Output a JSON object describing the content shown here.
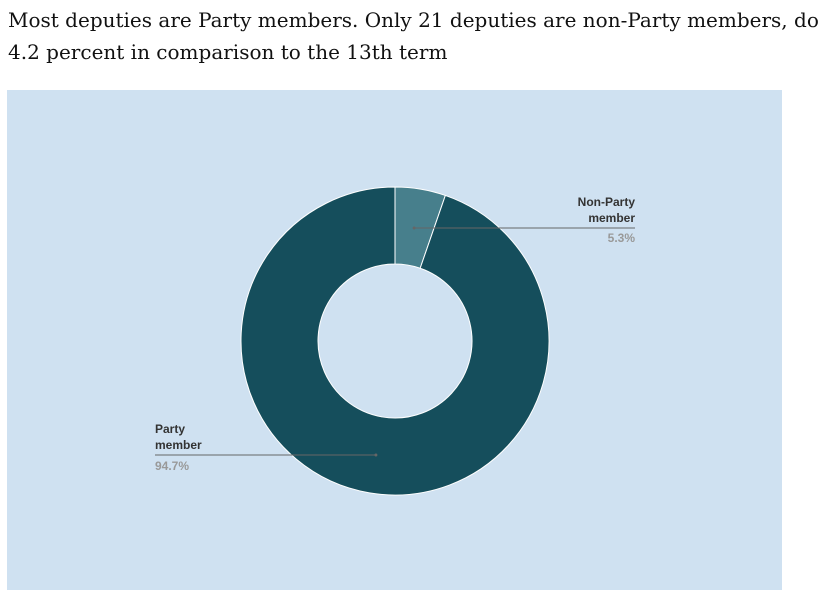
{
  "headline": {
    "line1": "Most deputies are Party members. Only 21 deputies are non-Party members, do",
    "line2": "4.2 percent in comparison to the 13th term"
  },
  "colors": {
    "background": "#cfe1f1",
    "party": "#154e5c",
    "non_party": "#477f8c",
    "leader": "#666666"
  },
  "chart_data": {
    "type": "pie",
    "variant": "donut",
    "title": "",
    "categories": [
      "Non-Party member",
      "Party member"
    ],
    "values": [
      5.3,
      94.7
    ],
    "unit": "%",
    "labels": [
      {
        "lines": [
          "Non-Party",
          "member"
        ],
        "value_text": "5.3%"
      },
      {
        "lines": [
          "Party",
          "member"
        ],
        "value_text": "94.7%"
      }
    ],
    "legend": "none"
  }
}
